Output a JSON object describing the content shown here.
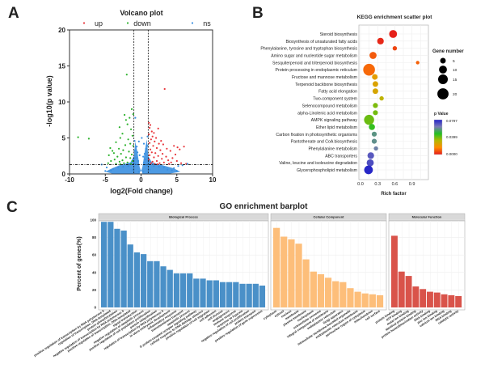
{
  "panel_labels": {
    "a": "A",
    "b": "B",
    "c": "C"
  },
  "colors": {
    "up": "#e8383d",
    "down": "#2db32d",
    "ns": "#3a8fe0",
    "bp": "#4a90c8",
    "cc": "#fdbe7a",
    "mf": "#d9534a"
  },
  "chart_data": [
    {
      "type": "scatter",
      "title": "Volcano plot",
      "xlabel": "log2(Fold change)",
      "ylabel": "-log10(p value)",
      "xlim": [
        -10,
        10
      ],
      "ylim": [
        0,
        20
      ],
      "xticks": [
        "-10",
        "-5",
        "0",
        "5",
        "10"
      ],
      "yticks": [
        "0",
        "5",
        "10",
        "15",
        "20"
      ],
      "legend_position": "top",
      "thresholds": {
        "log2fc": [
          -1,
          1
        ],
        "neg_log10_p": 1.3
      },
      "series": [
        {
          "name": "up",
          "points": [
            [
              3.3,
              11.8
            ],
            [
              1.1,
              7.1
            ],
            [
              1.3,
              6.8
            ],
            [
              1.2,
              6.4
            ],
            [
              2.4,
              6.3
            ],
            [
              1.5,
              5.9
            ],
            [
              1.8,
              5.7
            ],
            [
              1.1,
              5.5
            ],
            [
              1.6,
              5.2
            ],
            [
              2.1,
              5
            ],
            [
              1.4,
              4.8
            ],
            [
              2.8,
              4.6
            ],
            [
              1.9,
              4.5
            ],
            [
              1.2,
              4.3
            ],
            [
              2.5,
              4.2
            ],
            [
              3.1,
              4.1
            ],
            [
              6.0,
              3.8
            ],
            [
              4.6,
              3.9
            ],
            [
              5.1,
              3.7
            ],
            [
              1.7,
              3.9
            ],
            [
              2.2,
              3.6
            ],
            [
              3.6,
              3.5
            ],
            [
              1.3,
              3.4
            ],
            [
              2.7,
              3.3
            ],
            [
              4.1,
              3.2
            ],
            [
              5.4,
              3.4
            ],
            [
              1.5,
              3.0
            ],
            [
              2.0,
              2.9
            ],
            [
              3.0,
              2.8
            ],
            [
              4.8,
              2.7
            ],
            [
              1.2,
              2.6
            ],
            [
              2.4,
              2.5
            ],
            [
              3.5,
              2.4
            ],
            [
              1.8,
              2.3
            ],
            [
              4.4,
              2.2
            ],
            [
              2.9,
              2.1
            ],
            [
              1.1,
              2.0
            ],
            [
              3.8,
              1.9
            ],
            [
              5.0,
              1.8
            ],
            [
              2.2,
              1.8
            ],
            [
              1.6,
              1.7
            ],
            [
              4.2,
              1.6
            ],
            [
              3.2,
              1.6
            ],
            [
              1.4,
              1.5
            ],
            [
              2.6,
              1.5
            ],
            [
              5.6,
              1.5
            ],
            [
              6.3,
              1.4
            ],
            [
              1.9,
              1.4
            ],
            [
              3.9,
              1.4
            ],
            [
              2.3,
              1.35
            ]
          ]
        },
        {
          "name": "down",
          "points": [
            [
              -2.0,
              13.8
            ],
            [
              -8.8,
              5.1
            ],
            [
              -7.3,
              4.9
            ],
            [
              -1.3,
              9.0
            ],
            [
              -1.1,
              8.3
            ],
            [
              -2.3,
              8.2
            ],
            [
              -1.6,
              7.8
            ],
            [
              -2.1,
              7.5
            ],
            [
              -1.9,
              6.9
            ],
            [
              -3.0,
              6.5
            ],
            [
              -1.4,
              6.2
            ],
            [
              -2.6,
              5.6
            ],
            [
              -1.2,
              5.3
            ],
            [
              -2.9,
              5.0
            ],
            [
              -1.8,
              4.8
            ],
            [
              -3.5,
              4.4
            ],
            [
              -1.5,
              4.2
            ],
            [
              -2.2,
              4.0
            ],
            [
              -4.3,
              3.6
            ],
            [
              -1.1,
              3.9
            ],
            [
              -3.1,
              3.5
            ],
            [
              -2.5,
              3.3
            ],
            [
              -4.0,
              3.2
            ],
            [
              -1.7,
              3.1
            ],
            [
              -3.8,
              2.9
            ],
            [
              -2.8,
              2.8
            ],
            [
              -1.3,
              2.7
            ],
            [
              -4.5,
              2.6
            ],
            [
              -3.3,
              2.4
            ],
            [
              -2.1,
              2.3
            ],
            [
              -1.5,
              2.2
            ],
            [
              -3.7,
              2.0
            ],
            [
              -2.6,
              1.9
            ],
            [
              -4.2,
              1.8
            ],
            [
              -1.2,
              1.8
            ],
            [
              -3.0,
              1.7
            ],
            [
              -1.9,
              1.6
            ],
            [
              -4.6,
              1.5
            ],
            [
              -2.4,
              1.5
            ],
            [
              -3.5,
              1.4
            ],
            [
              -1.4,
              1.4
            ],
            [
              -2.9,
              1.35
            ]
          ]
        },
        {
          "name": "ns",
          "points": [
            [
              -0.8,
              7.8
            ],
            [
              0.1,
              5.0
            ],
            [
              -0.3,
              4.5
            ],
            [
              0.4,
              4.2
            ],
            [
              -0.6,
              3.8
            ],
            [
              0.7,
              3.5
            ],
            [
              -0.9,
              3.2
            ],
            [
              0.9,
              5.2
            ],
            [
              0.8,
              4.0
            ],
            [
              -0.5,
              3.0
            ],
            [
              0.5,
              2.8
            ],
            [
              -0.2,
              2.6
            ],
            [
              0.3,
              2.4
            ],
            [
              -0.7,
              2.2
            ],
            [
              0.6,
              2.0
            ],
            [
              -5.5,
              1.3
            ],
            [
              5.2,
              1.1
            ],
            [
              5.8,
              1.2
            ],
            [
              6.5,
              1.4
            ],
            [
              -4.8,
              0.9
            ],
            [
              4.6,
              0.8
            ],
            [
              -3.9,
              0.7
            ],
            [
              3.7,
              0.6
            ],
            [
              -0.9,
              4.6
            ],
            [
              0.9,
              3.9
            ],
            [
              -0.4,
              1.8
            ],
            [
              0.4,
              1.6
            ],
            [
              -0.8,
              1.4
            ],
            [
              0.8,
              1.2
            ],
            [
              -2.5,
              1.0
            ],
            [
              2.5,
              1.0
            ],
            [
              -1.8,
              1.1
            ],
            [
              1.8,
              1.1
            ],
            [
              -3.2,
              0.9
            ],
            [
              3.2,
              0.9
            ],
            [
              -4.2,
              0.5
            ],
            [
              4.3,
              0.5
            ],
            [
              -5.0,
              0.4
            ],
            [
              5.0,
              0.4
            ],
            [
              -1.2,
              0.6
            ],
            [
              1.2,
              0.6
            ],
            [
              -0.3,
              0.3
            ],
            [
              0.3,
              0.3
            ]
          ]
        }
      ]
    },
    {
      "type": "scatter",
      "title": "KEGG enrichment scatter plot",
      "xlabel": "Rich factor",
      "xlim": [
        0,
        1.1
      ],
      "xticks": [
        "0.0",
        "0.3",
        "0.6",
        "0.9"
      ],
      "size_legend": {
        "title": "Gene number",
        "values": [
          5,
          10,
          15,
          20
        ]
      },
      "color_legend": {
        "title": "p Value",
        "labels": [
          "0.0797",
          "0.0399",
          "0.0000"
        ],
        "range": [
          0,
          0.0797
        ],
        "colors": [
          "#e41a1c",
          "#ff8c00",
          "#b5b800",
          "#22c022",
          "#7a7ab8",
          "#2323c8"
        ]
      },
      "terms": [
        {
          "name": "Steroid biosynthesis",
          "rich_factor": 0.57,
          "gene_number": 10,
          "p_value": 0.001
        },
        {
          "name": "Biosynthesis of unsaturated fatty acids",
          "rich_factor": 0.35,
          "gene_number": 7,
          "p_value": 0.002
        },
        {
          "name": "Phenylalanine, tyrosine and tryptophan biosynthesis",
          "rich_factor": 0.6,
          "gene_number": 3,
          "p_value": 0.006
        },
        {
          "name": "Amino sugar and nucleotide sugar metabolism",
          "rich_factor": 0.22,
          "gene_number": 8,
          "p_value": 0.009
        },
        {
          "name": "Sesquiterpenoid and triterpenoid biosynthesis",
          "rich_factor": 1.0,
          "gene_number": 2,
          "p_value": 0.01
        },
        {
          "name": "Protein processing in endoplasmic reticulum",
          "rich_factor": 0.15,
          "gene_number": 22,
          "p_value": 0.011
        },
        {
          "name": "Fructose and mannose metabolism",
          "rich_factor": 0.25,
          "gene_number": 5,
          "p_value": 0.022
        },
        {
          "name": "Terpenoid backbone biosynthesis",
          "rich_factor": 0.26,
          "gene_number": 5,
          "p_value": 0.024
        },
        {
          "name": "Fatty acid elongation",
          "rich_factor": 0.26,
          "gene_number": 5,
          "p_value": 0.025
        },
        {
          "name": "Two-component system",
          "rich_factor": 0.37,
          "gene_number": 3,
          "p_value": 0.03
        },
        {
          "name": "Selenocompound metabolism",
          "rich_factor": 0.26,
          "gene_number": 4,
          "p_value": 0.038
        },
        {
          "name": "alpha-Linolenic acid metabolism",
          "rich_factor": 0.26,
          "gene_number": 4,
          "p_value": 0.039
        },
        {
          "name": "AMPK signaling pathway",
          "rich_factor": 0.15,
          "gene_number": 16,
          "p_value": 0.04
        },
        {
          "name": "Ether lipid metabolism",
          "rich_factor": 0.2,
          "gene_number": 6,
          "p_value": 0.046
        },
        {
          "name": "Carbon fixation in photosynthetic organisms",
          "rich_factor": 0.24,
          "gene_number": 4,
          "p_value": 0.058
        },
        {
          "name": "Pantothenate and CoA biosynthesis",
          "rich_factor": 0.24,
          "gene_number": 4,
          "p_value": 0.059
        },
        {
          "name": "Phenylalanine metabolism",
          "rich_factor": 0.27,
          "gene_number": 3,
          "p_value": 0.062
        },
        {
          "name": "ABC transporters",
          "rich_factor": 0.18,
          "gene_number": 7,
          "p_value": 0.07
        },
        {
          "name": "Valine, leucine and isoleucine degradation",
          "rich_factor": 0.17,
          "gene_number": 8,
          "p_value": 0.072
        },
        {
          "name": "Glycerophospholipid metabolism",
          "rich_factor": 0.14,
          "gene_number": 12,
          "p_value": 0.079
        }
      ]
    },
    {
      "type": "bar",
      "title": "GO enrichment barplot",
      "ylabel": "Percent of genes(%)",
      "ylim": [
        0,
        100
      ],
      "yticks": [
        "0",
        "20",
        "40",
        "60",
        "80",
        "100"
      ],
      "grid": true,
      "facets": [
        {
          "name": "Biological Process",
          "color_key": "bp",
          "categories": [
            "positive regulation of transcription by RNA polymerase II",
            "regulation of transcription, DNA-templated",
            "protein phosphorylation",
            "negative regulation of transcription by RNA polymerase II",
            "positive regulation of transcription, DNA-templated",
            "signal transduction",
            "negative regulation of apoptotic process",
            "positive regulation of cell population proliferation",
            "protein ubiquitination",
            "regulation of transcription by RNA polymerase II",
            "in utero embryonic development",
            "inflammatory response",
            "transmembrane transport",
            "apoptotic process",
            "G protein-coupled receptor signaling pathway",
            "cellular response to DNA damage stimulus",
            "positive regulation of cell migration",
            "cell adhesion",
            "cell division",
            "angiogenesis",
            "immune response",
            "response to hypoxia",
            "negative regulation of cell proliferation",
            "protein transport",
            "positive regulation of gene expression"
          ],
          "values": [
            98,
            98,
            90,
            88,
            72,
            63,
            61,
            53,
            53,
            47,
            43,
            39,
            39,
            39,
            33,
            33,
            31,
            31,
            29,
            29,
            29,
            27,
            27,
            27,
            25
          ]
        },
        {
          "name": "Cellular Component",
          "color_key": "cc",
          "categories": [
            "cytoplasm",
            "cytosol",
            "nucleus",
            "membrane",
            "plasma membrane",
            "nucleoplasm",
            "extracellular exosome",
            "integral component of membrane",
            "endoplasmic reticulum",
            "Golgi apparatus",
            "intracellular membrane-bounded organelle",
            "endoplasmic reticulum membrane",
            "perinuclear region of cytoplasm",
            "mitochondrion",
            "cell surface"
          ],
          "values": [
            91,
            81,
            78,
            73,
            55,
            41,
            38,
            34,
            30,
            29,
            22,
            18,
            16,
            15,
            14
          ]
        },
        {
          "name": "Molecular Function",
          "color_key": "mf",
          "categories": [
            "protein binding",
            "ATP binding",
            "metal ion binding",
            "identical protein binding",
            "protein homodimerization activity",
            "DNA binding",
            "zinc ion binding",
            "calcium ion binding",
            "RNA binding",
            "catalytic activity"
          ],
          "values": [
            82,
            41,
            36,
            24,
            21,
            18,
            17,
            15,
            14,
            13
          ]
        }
      ]
    }
  ]
}
